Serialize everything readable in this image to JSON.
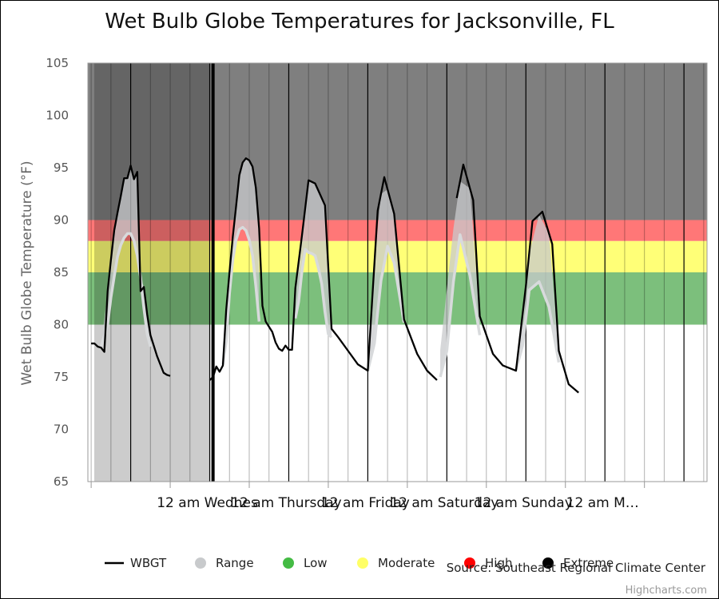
{
  "chart_data": {
    "type": "line",
    "title": "Wet Bulb Globe Temperatures for Jacksonville, FL",
    "ylabel": "Wet Bulb Globe Temperature (°F)",
    "ylim": [
      65,
      105
    ],
    "y_ticks": [
      "65",
      "70",
      "75",
      "80",
      "85",
      "90",
      "95",
      "100",
      "105"
    ],
    "x_range_hours": [
      -37,
      151
    ],
    "day_labels": [
      "12 am Wednes",
      "12 am Thursday",
      "12 am Friday",
      "12 am Saturday",
      "12 am Sunday",
      "12 am M…"
    ],
    "bands": [
      {
        "name": "Low",
        "from": 80,
        "to": 85,
        "color": "#7CBF7C"
      },
      {
        "name": "Moderate",
        "from": 85,
        "to": 88,
        "color": "#FFFF77"
      },
      {
        "name": "High",
        "from": 88,
        "to": 90,
        "color": "#FF7777"
      },
      {
        "name": "Extreme",
        "from": 90,
        "to": 105,
        "color": "#7F7F7F"
      }
    ],
    "history_shade_until_hour": 0,
    "current_time_hour": 1,
    "series": [
      {
        "name": "WBGT",
        "color": "#000000",
        "points": [
          [
            -36,
            78.2
          ],
          [
            -35,
            78.2
          ],
          [
            -34,
            77.9
          ],
          [
            -33,
            77.8
          ],
          [
            -32,
            77.4
          ],
          [
            -31,
            83.2
          ],
          [
            -30,
            86.2
          ],
          [
            -29,
            89.0
          ],
          [
            -28,
            90.7
          ],
          [
            -27,
            92.3
          ],
          [
            -26,
            94.0
          ],
          [
            -25,
            94.0
          ],
          [
            -24,
            95.2
          ],
          [
            -23,
            93.9
          ],
          [
            -22,
            94.6
          ],
          [
            -21,
            83.2
          ],
          [
            -20,
            83.6
          ],
          [
            -19,
            81.0
          ],
          [
            -18,
            79.0
          ],
          [
            -17,
            78.0
          ],
          [
            -16,
            77.0
          ],
          [
            -15,
            76.2
          ],
          [
            -14,
            75.4
          ],
          [
            -13,
            75.2
          ],
          [
            -12,
            75.1
          ],
          [
            0,
            74.7
          ],
          [
            1,
            75.0
          ],
          [
            2,
            76.0
          ],
          [
            3,
            75.5
          ],
          [
            4,
            76.1
          ],
          [
            5,
            81.4
          ],
          [
            6,
            85.0
          ],
          [
            7,
            88.4
          ],
          [
            8,
            91.3
          ],
          [
            9,
            94.3
          ],
          [
            10,
            95.5
          ],
          [
            11,
            95.9
          ],
          [
            12,
            95.7
          ],
          [
            13,
            95.1
          ],
          [
            14,
            93.1
          ],
          [
            15,
            89.2
          ],
          [
            16,
            81.8
          ],
          [
            17,
            80.3
          ],
          [
            18,
            79.8
          ],
          [
            19,
            79.3
          ],
          [
            20,
            78.3
          ],
          [
            21,
            77.7
          ],
          [
            22,
            77.5
          ],
          [
            23,
            78.0
          ],
          [
            24,
            77.6
          ],
          [
            25,
            77.6
          ],
          [
            26,
            83.5
          ],
          [
            28,
            88.5
          ],
          [
            30,
            93.8
          ],
          [
            32,
            93.5
          ],
          [
            35,
            91.4
          ],
          [
            37,
            79.6
          ],
          [
            39,
            78.8
          ],
          [
            42,
            77.5
          ],
          [
            45,
            76.2
          ],
          [
            48,
            75.6
          ],
          [
            51,
            90.9
          ],
          [
            53,
            94.1
          ],
          [
            56,
            90.6
          ],
          [
            59,
            80.5
          ],
          [
            63,
            77.2
          ],
          [
            66,
            75.6
          ],
          [
            69,
            74.7
          ],
          [
            75,
            92.1
          ],
          [
            77,
            95.3
          ],
          [
            80,
            91.9
          ],
          [
            82,
            80.8
          ],
          [
            86,
            77.2
          ],
          [
            89,
            76.1
          ],
          [
            93,
            75.6
          ],
          [
            96,
            83.7
          ],
          [
            98,
            89.9
          ],
          [
            101,
            90.8
          ],
          [
            104,
            87.7
          ],
          [
            106,
            77.5
          ],
          [
            109,
            74.3
          ],
          [
            112,
            73.5
          ]
        ]
      },
      {
        "name": "Range",
        "color": "#C8CACC",
        "points": [
          [
            -33,
            77.9
          ],
          [
            -31,
            80.0
          ],
          [
            -30,
            82.6
          ],
          [
            -29,
            84.6
          ],
          [
            -28,
            86.5
          ],
          [
            -27,
            87.6
          ],
          [
            -26,
            88.3
          ],
          [
            -25,
            88.7
          ],
          [
            -24,
            88.7
          ],
          [
            -23,
            88.0
          ],
          [
            -22,
            86.6
          ],
          [
            -21,
            84.5
          ],
          [
            -20,
            81.6
          ],
          [
            -19,
            79.1
          ],
          [
            -18,
            77.9
          ],
          [
            4,
            76.2
          ],
          [
            5,
            78.4
          ],
          [
            6,
            83.0
          ],
          [
            7,
            86.2
          ],
          [
            8,
            88.1
          ],
          [
            9,
            89.1
          ],
          [
            10,
            89.3
          ],
          [
            11,
            89.0
          ],
          [
            12,
            88.1
          ],
          [
            13,
            86.6
          ],
          [
            14,
            83.7
          ],
          [
            15,
            80.3
          ],
          [
            26,
            80.6
          ],
          [
            27,
            82.2
          ],
          [
            28,
            85.1
          ],
          [
            29,
            87.2
          ],
          [
            30,
            86.9
          ],
          [
            31,
            86.8
          ],
          [
            32,
            86.6
          ],
          [
            33,
            85.4
          ],
          [
            34,
            83.9
          ],
          [
            35,
            81.2
          ],
          [
            36,
            79.1
          ],
          [
            37,
            78.8
          ],
          [
            48,
            75.6
          ],
          [
            50,
            78.2
          ],
          [
            52,
            84.2
          ],
          [
            54,
            87.5
          ],
          [
            56,
            85.9
          ],
          [
            59,
            80.2
          ],
          [
            70,
            75.0
          ],
          [
            72,
            77.5
          ],
          [
            74,
            84.1
          ],
          [
            76,
            88.6
          ],
          [
            79,
            84.7
          ],
          [
            82,
            79.0
          ],
          [
            93,
            75.7
          ],
          [
            95,
            78.0
          ],
          [
            97,
            83.3
          ],
          [
            100,
            84.1
          ],
          [
            103,
            81.7
          ],
          [
            106,
            76.4
          ]
        ]
      }
    ],
    "legend": [
      {
        "label": "WBGT",
        "symbol": "line",
        "color": "#000000"
      },
      {
        "label": "Range",
        "symbol": "dot",
        "color": "#C8CACC"
      },
      {
        "label": "Low",
        "symbol": "dot",
        "color": "#44BB44"
      },
      {
        "label": "Moderate",
        "symbol": "dot",
        "color": "#FFFF66"
      },
      {
        "label": "High",
        "symbol": "dot",
        "color": "#FF0000"
      },
      {
        "label": "Extreme",
        "symbol": "dot",
        "color": "#000000"
      }
    ],
    "legend_placement": "bottom-center",
    "source": "Source: Southeast Regional Climate Center",
    "credits": "Highcharts.com"
  }
}
